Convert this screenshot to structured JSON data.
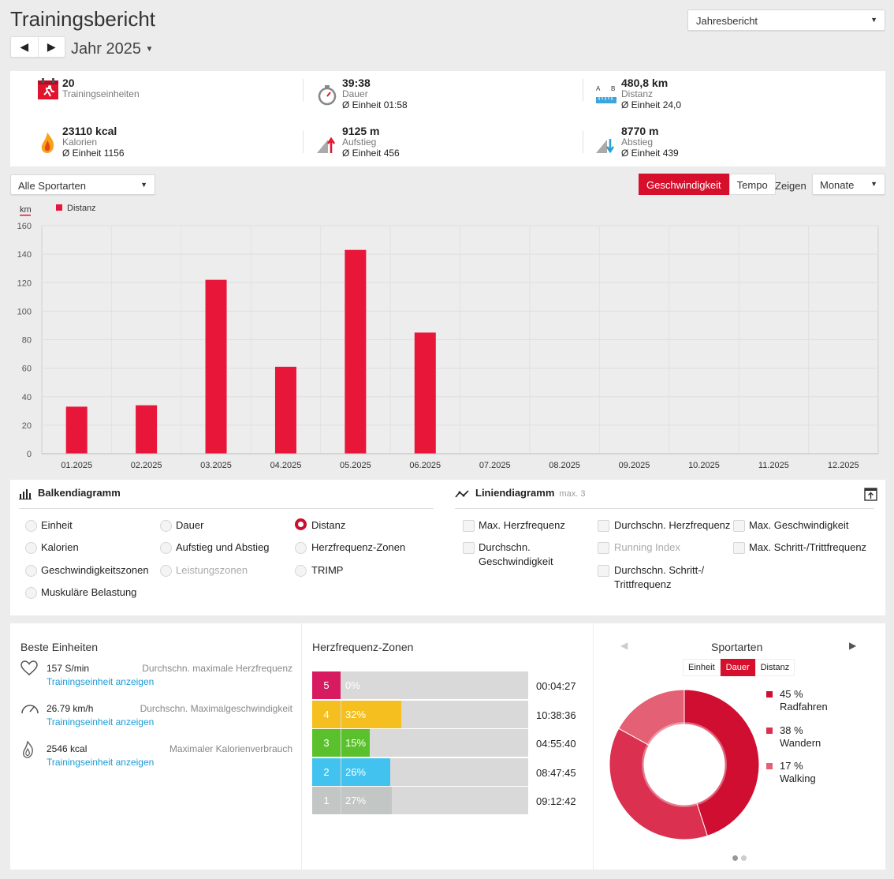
{
  "header": {
    "title": "Trainingsbericht",
    "report_type": "Jahresbericht",
    "prev_label": "◀",
    "next_label": "▶",
    "period": "Jahr 2025"
  },
  "stats": [
    {
      "value": "20",
      "label": "Trainingseinheiten",
      "avg": "",
      "icon": "calendar-run-icon"
    },
    {
      "value": "39:38",
      "label": "Dauer",
      "avg": "Ø Einheit 01:58",
      "icon": "stopwatch-icon"
    },
    {
      "value": "480,8 km",
      "label": "Distanz",
      "avg": "Ø Einheit 24,0",
      "icon": "distance-ruler-icon"
    },
    {
      "value": "23110 kcal",
      "label": "Kalorien",
      "avg": "Ø Einheit 1156",
      "icon": "flame-icon"
    },
    {
      "value": "9125 m",
      "label": "Aufstieg",
      "avg": "Ø Einheit 456",
      "icon": "ascent-icon"
    },
    {
      "value": "8770 m",
      "label": "Abstieg",
      "avg": "Ø Einheit 439",
      "icon": "descent-icon"
    }
  ],
  "filters": {
    "sport": "Alle Sportarten",
    "speed_label": "Geschwindigkeit",
    "pace_label": "Tempo",
    "show_label": "Zeigen",
    "granularity": "Monate"
  },
  "chart_data": {
    "type": "bar",
    "ylabel": "km",
    "ylim": [
      0,
      160
    ],
    "yticks": [
      0,
      20,
      40,
      60,
      80,
      100,
      120,
      140,
      160
    ],
    "categories": [
      "01.2025",
      "02.2025",
      "03.2025",
      "04.2025",
      "05.2025",
      "06.2025",
      "07.2025",
      "08.2025",
      "09.2025",
      "10.2025",
      "11.2025",
      "12.2025"
    ],
    "series": [
      {
        "name": "Distanz",
        "values": [
          33,
          34,
          122,
          61,
          143,
          85,
          0,
          0,
          0,
          0,
          0,
          0
        ],
        "color": "#e8173a"
      }
    ],
    "grid": true,
    "legend": "top-left"
  },
  "options": {
    "bar_title": "Balkendiagramm",
    "line_title": "Liniendiagramm",
    "line_max": "max. 3",
    "bar_items": [
      "Einheit",
      "Dauer",
      "Distanz",
      "Kalorien",
      "Aufstieg und Abstieg",
      "Herzfrequenz-Zonen",
      "Geschwindigkeitszonen",
      "Leistungszonen",
      "TRIMP",
      "Muskuläre Belastung"
    ],
    "line_items": [
      "Max. Herzfrequenz",
      "Durchschn. Herzfrequenz",
      "Max. Geschwindigkeit",
      "Durchschn. Geschwindigkeit",
      "Running Index",
      "Max. Schritt-/Trittfrequenz",
      "Durchschn. Schritt-/ Trittfrequenz"
    ]
  },
  "best": {
    "title": "Beste Einheiten",
    "items": [
      {
        "value": "157 S/min",
        "desc": "Durchschn. maximale Herzfrequenz",
        "link": "Trainingseinheit anzeigen",
        "icon": "heart-icon"
      },
      {
        "value": "26.79 km/h",
        "desc": "Durchschn. Maximalgeschwindigkeit",
        "link": "Trainingseinheit anzeigen",
        "icon": "speedometer-icon"
      },
      {
        "value": "2546 kcal",
        "desc": "Maximaler Kalorienverbrauch",
        "link": "Trainingseinheit anzeigen",
        "icon": "flame-outline-icon"
      }
    ]
  },
  "hr_zones": {
    "title": "Herzfrequenz-Zonen",
    "zones": [
      {
        "zone": "5",
        "percent": "0%",
        "fraction": 0.0,
        "time": "00:04:27",
        "color": "#d81b60"
      },
      {
        "zone": "4",
        "percent": "32%",
        "fraction": 0.32,
        "time": "10:38:36",
        "color": "#f5bf1f"
      },
      {
        "zone": "3",
        "percent": "15%",
        "fraction": 0.15,
        "time": "04:55:40",
        "color": "#5ac12c"
      },
      {
        "zone": "2",
        "percent": "26%",
        "fraction": 0.26,
        "time": "08:47:45",
        "color": "#42c3ef"
      },
      {
        "zone": "1",
        "percent": "27%",
        "fraction": 0.27,
        "time": "09:12:42",
        "color": "#c2c6c4"
      }
    ]
  },
  "sports": {
    "title": "Sportarten",
    "tabs": [
      "Einheit",
      "Dauer",
      "Distanz"
    ],
    "items": [
      {
        "percent": "45 %",
        "name": "Radfahren",
        "value": 45,
        "color": "#cf0e32"
      },
      {
        "percent": "38 %",
        "name": "Wandern",
        "value": 38,
        "color": "#db3050"
      },
      {
        "percent": "17 %",
        "name": "Walking",
        "value": 17,
        "color": "#e46074"
      }
    ]
  }
}
